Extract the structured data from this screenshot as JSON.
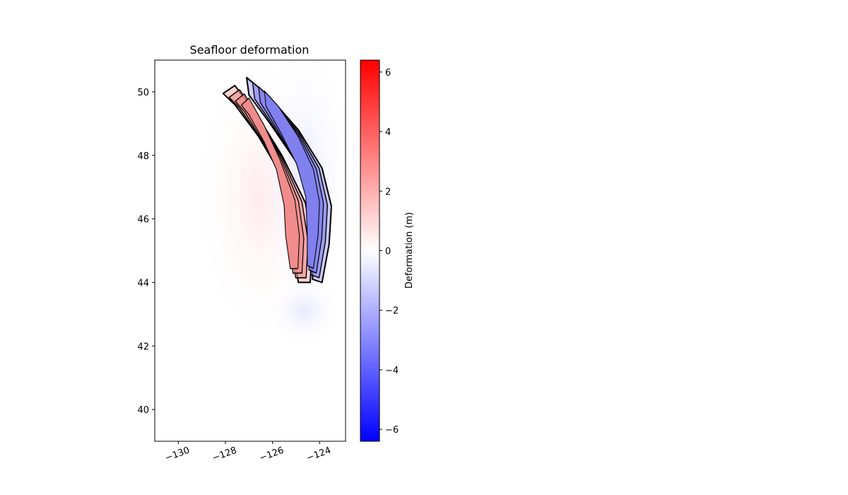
{
  "chart_data": {
    "type": "heatmap",
    "title": "Seafloor deformation",
    "xlabel": "",
    "ylabel": "",
    "xlim": [
      -131,
      -122.9
    ],
    "ylim": [
      39,
      51
    ],
    "x_ticks": [
      -130,
      -128,
      -126,
      -124
    ],
    "x_tick_labels": [
      "−130",
      "−128",
      "−126",
      "−124"
    ],
    "y_ticks": [
      40,
      42,
      44,
      46,
      48,
      50
    ],
    "y_tick_labels": [
      "40",
      "42",
      "44",
      "46",
      "48",
      "50"
    ],
    "colorbar": {
      "label": "Deformation (m)",
      "range": [
        -6.4,
        6.4
      ],
      "ticks": [
        -6,
        -4,
        -2,
        0,
        2,
        4,
        6
      ],
      "tick_labels": [
        "−6",
        "−4",
        "−2",
        "0",
        "2",
        "4",
        "6"
      ],
      "colormap": [
        "#0000ff",
        "#ffffff",
        "#ff0000"
      ]
    },
    "uplift_band": {
      "color": "#f08c8c",
      "outline": [
        [
          -128.1,
          49.95
        ],
        [
          -127.6,
          50.2
        ],
        [
          -126.6,
          49.2
        ],
        [
          -125.6,
          48.0
        ],
        [
          -124.6,
          46.5
        ],
        [
          -124.3,
          45.2
        ],
        [
          -124.4,
          44.0
        ],
        [
          -124.9,
          44.0
        ],
        [
          -125.2,
          45.2
        ],
        [
          -125.3,
          46.3
        ],
        [
          -125.8,
          47.6
        ],
        [
          -126.6,
          48.6
        ],
        [
          -127.6,
          49.6
        ]
      ]
    },
    "subsidence_band": {
      "color": "#8080ee",
      "outline": [
        [
          -127.1,
          50.45
        ],
        [
          -126.2,
          49.9
        ],
        [
          -124.9,
          48.8
        ],
        [
          -123.9,
          47.6
        ],
        [
          -123.5,
          46.4
        ],
        [
          -123.6,
          45.2
        ],
        [
          -123.9,
          44.0
        ],
        [
          -124.3,
          44.1
        ],
        [
          -124.3,
          45.2
        ],
        [
          -124.4,
          46.6
        ],
        [
          -125.0,
          47.8
        ],
        [
          -126.1,
          49.0
        ],
        [
          -127.0,
          49.9
        ]
      ]
    }
  }
}
